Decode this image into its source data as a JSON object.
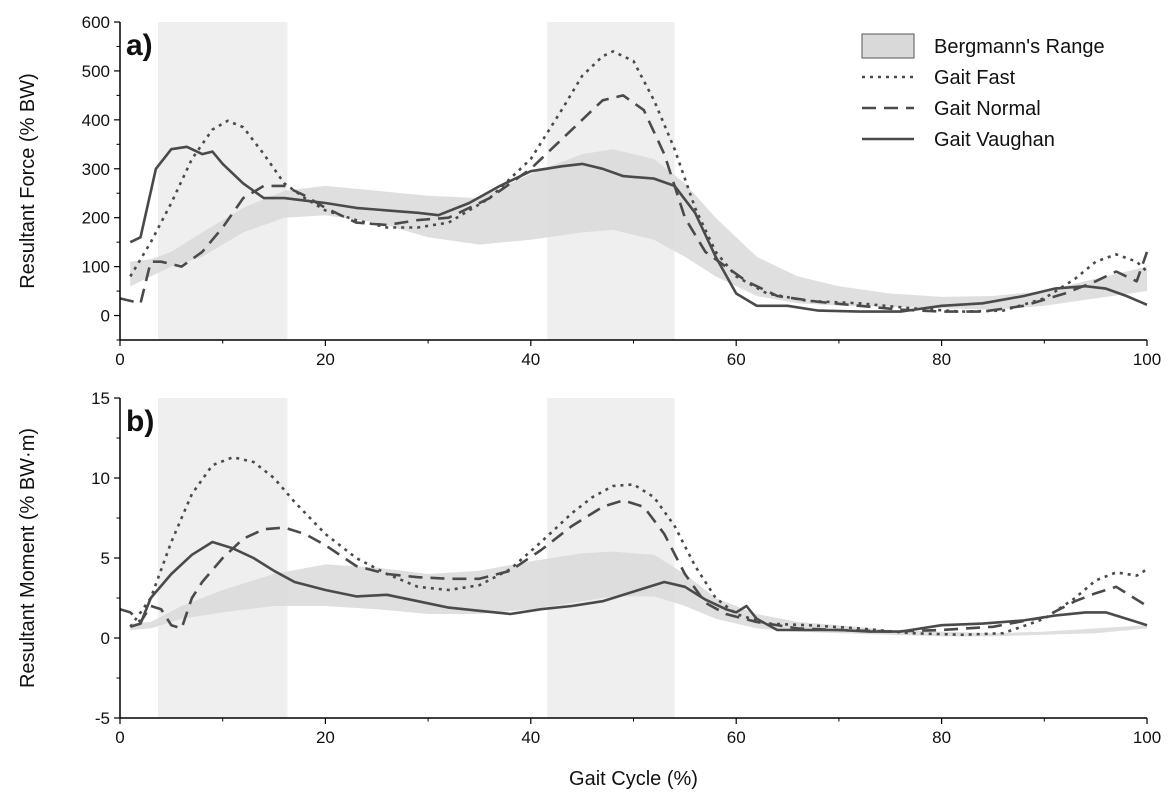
{
  "chart_data": [
    {
      "type": "line",
      "panel_label": "a)",
      "xlabel": "",
      "ylabel": "Resultant Force (% BW)",
      "xlim": [
        0,
        100
      ],
      "ylim": [
        -50,
        600
      ],
      "x_ticks": [
        0,
        20,
        40,
        60,
        80,
        100
      ],
      "y_ticks": [
        0,
        100,
        200,
        300,
        400,
        500,
        600
      ],
      "shaded_regions": [
        [
          3.7,
          16.3
        ],
        [
          41.6,
          54.0
        ]
      ],
      "band": {
        "name": "Bergmann's Range",
        "x": [
          1,
          3,
          5,
          8,
          12,
          16,
          20,
          25,
          30,
          35,
          40,
          45,
          48,
          52,
          55,
          58,
          62,
          66,
          70,
          75,
          80,
          85,
          90,
          95,
          100
        ],
        "lower": [
          60,
          80,
          100,
          120,
          170,
          200,
          205,
          190,
          160,
          145,
          155,
          170,
          175,
          155,
          120,
          80,
          40,
          25,
          20,
          18,
          15,
          12,
          20,
          35,
          50
        ],
        "upper": [
          110,
          115,
          130,
          170,
          220,
          255,
          265,
          255,
          245,
          240,
          290,
          330,
          340,
          320,
          270,
          200,
          120,
          80,
          60,
          45,
          38,
          40,
          50,
          75,
          100
        ]
      },
      "series": [
        {
          "name": "Gait Fast",
          "style": "dotted",
          "x": [
            1,
            3,
            5,
            7,
            9,
            10.5,
            12,
            14,
            16,
            18,
            20,
            23,
            26,
            29,
            32,
            36,
            40,
            43,
            45,
            47,
            48,
            50,
            52,
            54,
            56,
            58,
            60,
            63,
            67,
            72,
            77,
            82,
            86,
            90,
            93,
            95,
            97,
            99,
            100
          ],
          "y": [
            80,
            150,
            230,
            320,
            380,
            398,
            385,
            330,
            270,
            240,
            215,
            195,
            180,
            180,
            190,
            240,
            320,
            420,
            490,
            530,
            540,
            520,
            440,
            340,
            220,
            130,
            80,
            45,
            30,
            25,
            15,
            8,
            10,
            35,
            75,
            110,
            125,
            110,
            90
          ]
        },
        {
          "name": "Gait Normal",
          "style": "dashed",
          "x": [
            0,
            2,
            3,
            4,
            6,
            8,
            10,
            12,
            14,
            16,
            18,
            20,
            23,
            26,
            29,
            32,
            36,
            40,
            43,
            45,
            47,
            49,
            51,
            53,
            55,
            57,
            59,
            61,
            64,
            68,
            72,
            76,
            80,
            84,
            88,
            92,
            95,
            97,
            99,
            100
          ],
          "y": [
            35,
            25,
            110,
            110,
            100,
            130,
            180,
            240,
            265,
            265,
            245,
            220,
            190,
            185,
            195,
            200,
            240,
            300,
            360,
            400,
            440,
            450,
            420,
            330,
            200,
            130,
            100,
            70,
            40,
            28,
            20,
            12,
            8,
            8,
            20,
            45,
            70,
            90,
            70,
            130
          ]
        },
        {
          "name": "Gait Vaughan",
          "style": "solid",
          "x": [
            1,
            2,
            3.5,
            5,
            6.5,
            8,
            9,
            10,
            12,
            14,
            16,
            18,
            20,
            23,
            26,
            29,
            31,
            34,
            37,
            40,
            43,
            45,
            47,
            49,
            52,
            54,
            56,
            58,
            60,
            62,
            65,
            68,
            72,
            76,
            80,
            84,
            88,
            91,
            94,
            96,
            98,
            100
          ],
          "y": [
            150,
            160,
            300,
            340,
            345,
            330,
            335,
            310,
            270,
            240,
            240,
            235,
            230,
            220,
            215,
            210,
            205,
            230,
            265,
            295,
            305,
            310,
            300,
            285,
            280,
            265,
            210,
            120,
            45,
            20,
            20,
            10,
            8,
            8,
            20,
            25,
            40,
            55,
            60,
            55,
            40,
            22
          ]
        }
      ]
    },
    {
      "type": "line",
      "panel_label": "b)",
      "xlabel": "Gait Cycle (%)",
      "ylabel": "Resultant Moment (% BW·m)",
      "xlim": [
        0,
        100
      ],
      "ylim": [
        -5,
        15
      ],
      "x_ticks": [
        0,
        20,
        40,
        60,
        80,
        100
      ],
      "y_ticks": [
        -5,
        0,
        5,
        10,
        15
      ],
      "shaded_regions": [
        [
          3.7,
          16.3
        ],
        [
          41.6,
          54.0
        ]
      ],
      "band": {
        "name": "Bergmann's Range",
        "x": [
          1,
          3,
          6,
          10,
          15,
          20,
          25,
          30,
          35,
          40,
          45,
          48,
          52,
          55,
          58,
          62,
          66,
          70,
          75,
          80,
          85,
          90,
          95,
          100
        ],
        "lower": [
          0.5,
          0.6,
          1.2,
          1.6,
          2.0,
          2.0,
          1.8,
          1.5,
          1.5,
          1.8,
          2.3,
          2.6,
          2.6,
          2.0,
          1.2,
          0.6,
          0.4,
          0.3,
          0.2,
          0.1,
          0.1,
          0.2,
          0.3,
          0.6
        ],
        "upper": [
          0.9,
          1.0,
          2.0,
          3.0,
          4.0,
          4.6,
          4.4,
          4.0,
          4.2,
          4.8,
          5.3,
          5.4,
          5.2,
          4.0,
          2.5,
          1.5,
          1.0,
          0.8,
          0.5,
          0.4,
          0.3,
          0.4,
          0.6,
          0.8
        ]
      },
      "series": [
        {
          "name": "Gait Fast",
          "style": "dotted",
          "x": [
            1,
            3,
            5,
            7,
            9,
            11,
            13,
            15,
            17,
            20,
            23,
            26,
            29,
            32,
            35,
            38,
            41,
            44,
            46,
            48,
            50,
            52,
            54,
            56,
            58,
            60,
            63,
            67,
            72,
            77,
            82,
            86,
            90,
            93,
            95,
            97,
            99,
            100
          ],
          "y": [
            0.7,
            2.5,
            6.0,
            9.0,
            10.8,
            11.3,
            11.0,
            10.0,
            8.5,
            6.5,
            5.0,
            4.0,
            3.2,
            3.0,
            3.3,
            4.3,
            6.0,
            7.8,
            8.8,
            9.5,
            9.6,
            8.8,
            7.0,
            4.5,
            2.5,
            1.5,
            0.9,
            0.8,
            0.6,
            0.3,
            0.2,
            0.3,
            1.2,
            2.5,
            3.6,
            4.1,
            3.9,
            4.3
          ]
        },
        {
          "name": "Gait Normal",
          "style": "dashed",
          "x": [
            0,
            1,
            2,
            3,
            4,
            5,
            6,
            7,
            8,
            10,
            12,
            14,
            16,
            18,
            20,
            23,
            26,
            29,
            32,
            35,
            38,
            41,
            44,
            47,
            49,
            51,
            53,
            55,
            57,
            59,
            62,
            66,
            70,
            75,
            80,
            85,
            90,
            93,
            95,
            97,
            99,
            100
          ],
          "y": [
            1.8,
            1.6,
            1.0,
            2.0,
            1.8,
            0.8,
            0.6,
            2.5,
            3.5,
            5.0,
            6.2,
            6.8,
            6.9,
            6.5,
            5.8,
            4.5,
            4.0,
            3.8,
            3.7,
            3.7,
            4.2,
            5.5,
            7.0,
            8.2,
            8.6,
            8.2,
            6.5,
            4.0,
            2.2,
            1.5,
            1.0,
            0.6,
            0.5,
            0.4,
            0.5,
            0.7,
            1.3,
            2.3,
            2.8,
            3.2,
            2.4,
            2.0
          ]
        },
        {
          "name": "Gait Vaughan",
          "style": "solid",
          "x": [
            1,
            2,
            3,
            5,
            7,
            9,
            11,
            13,
            15,
            17,
            20,
            23,
            26,
            29,
            32,
            35,
            38,
            41,
            44,
            47,
            50,
            53,
            55,
            57,
            59,
            60,
            61,
            62,
            64,
            67,
            70,
            73,
            76,
            80,
            84,
            88,
            91,
            94,
            96,
            98,
            100
          ],
          "y": [
            0.7,
            0.9,
            2.5,
            4.0,
            5.2,
            6.0,
            5.6,
            5.0,
            4.2,
            3.5,
            3.0,
            2.6,
            2.7,
            2.3,
            1.9,
            1.7,
            1.5,
            1.8,
            2.0,
            2.3,
            2.9,
            3.5,
            3.2,
            2.4,
            1.8,
            1.6,
            2.0,
            1.2,
            0.5,
            0.5,
            0.5,
            0.4,
            0.4,
            0.8,
            0.9,
            1.1,
            1.4,
            1.6,
            1.6,
            1.2,
            0.8
          ]
        }
      ]
    }
  ],
  "legend": {
    "placement": "top-right",
    "items": [
      {
        "label": "Bergmann's Range",
        "style": "band"
      },
      {
        "label": "Gait Fast",
        "style": "dotted"
      },
      {
        "label": "Gait Normal",
        "style": "dashed"
      },
      {
        "label": "Gait Vaughan",
        "style": "solid"
      }
    ]
  },
  "colors": {
    "line": "#4a4a4a",
    "band_fill": "#d9d9d9",
    "shaded_region": "#efefef",
    "axis": "#000000"
  }
}
